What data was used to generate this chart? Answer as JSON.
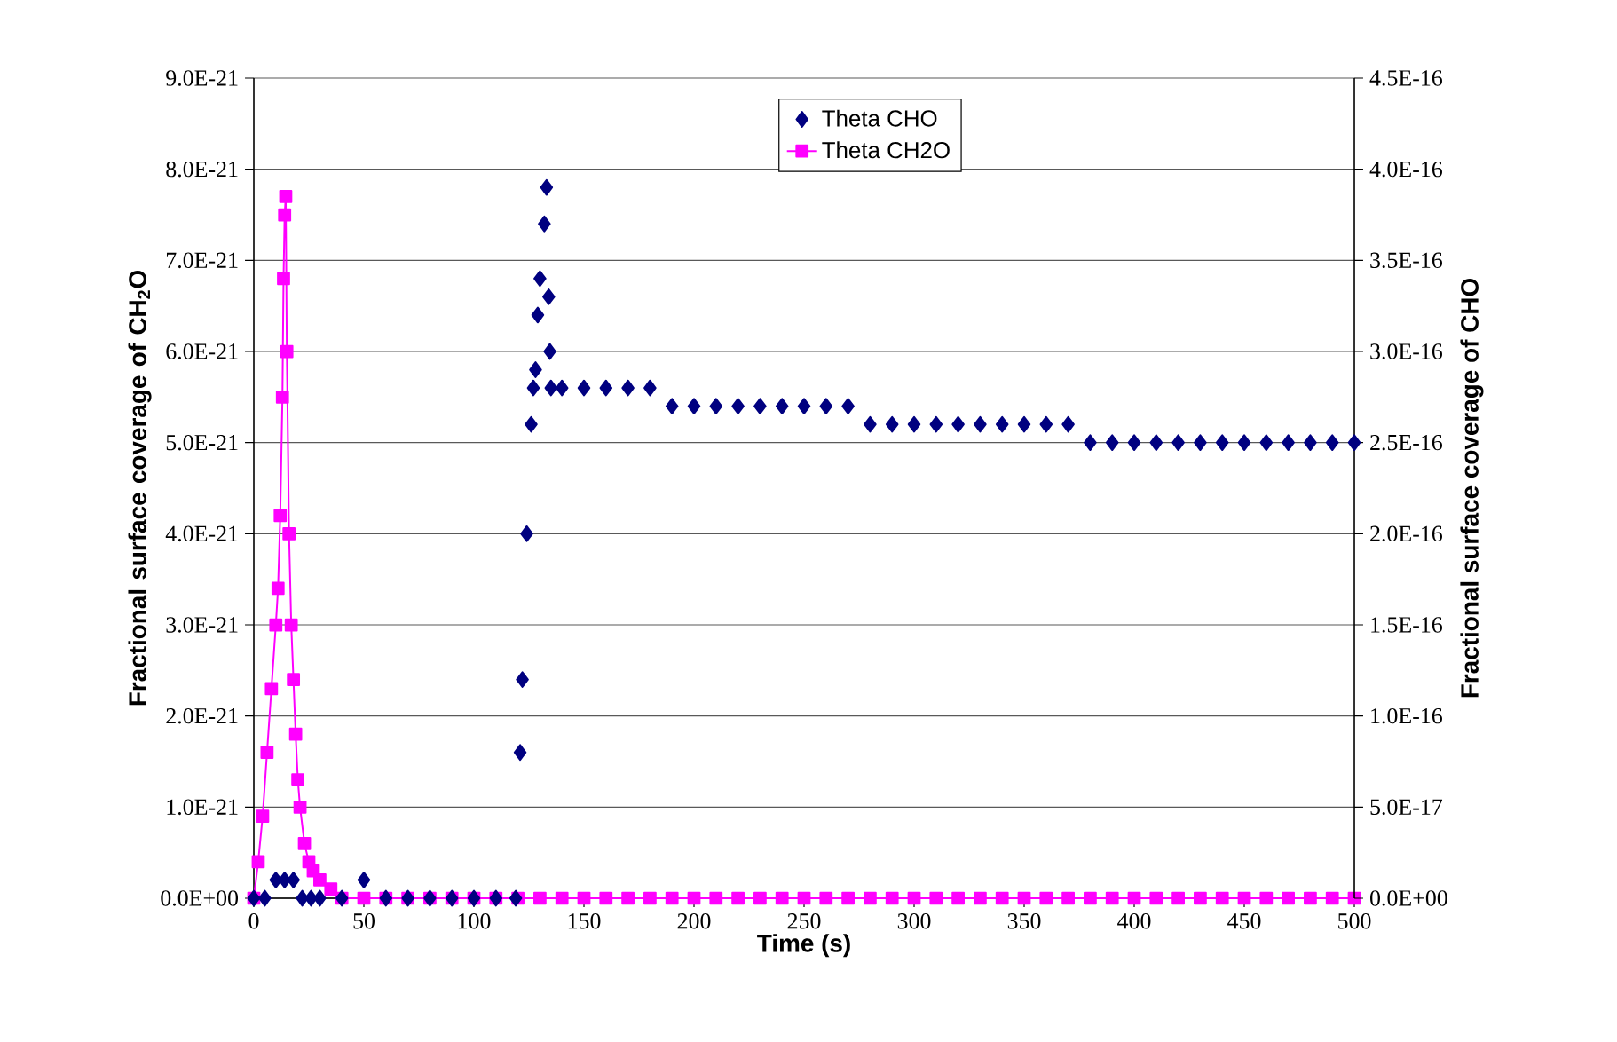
{
  "chart_data": {
    "type": "scatter",
    "xlabel": "Time (s)",
    "ylabel": "Fractional surface coverage of CH$_{2}$O",
    "y2label": "Fractional surface coverage of CHO",
    "xlim": [
      0,
      500
    ],
    "xticks": [
      0,
      50,
      100,
      150,
      200,
      250,
      300,
      350,
      400,
      450,
      500
    ],
    "ylim": [
      0,
      9e-21
    ],
    "yticks": [
      {
        "value": 0,
        "label": "0.0E+00"
      },
      {
        "value": 1e-21,
        "label": "1.0E-21"
      },
      {
        "value": 2e-21,
        "label": "2.0E-21"
      },
      {
        "value": 3e-21,
        "label": "3.0E-21"
      },
      {
        "value": 4e-21,
        "label": "4.0E-21"
      },
      {
        "value": 5e-21,
        "label": "5.0E-21"
      },
      {
        "value": 6e-21,
        "label": "6.0E-21"
      },
      {
        "value": 7e-21,
        "label": "7.0E-21"
      },
      {
        "value": 8e-21,
        "label": "8.0E-21"
      },
      {
        "value": 9e-21,
        "label": "9.0E-21"
      }
    ],
    "y2lim": [
      0,
      4.5e-16
    ],
    "y2ticks": [
      {
        "value": 0,
        "label": "0.0E+00"
      },
      {
        "value": 5e-17,
        "label": "5.0E-17"
      },
      {
        "value": 1e-16,
        "label": "1.0E-16"
      },
      {
        "value": 1.5e-16,
        "label": "1.5E-16"
      },
      {
        "value": 2e-16,
        "label": "2.0E-16"
      },
      {
        "value": 2.5e-16,
        "label": "2.5E-16"
      },
      {
        "value": 3e-16,
        "label": "3.0E-16"
      },
      {
        "value": 3.5e-16,
        "label": "3.5E-16"
      },
      {
        "value": 4e-16,
        "label": "4.0E-16"
      },
      {
        "value": 4.5e-16,
        "label": "4.5E-16"
      }
    ],
    "grid": "y",
    "legend": "top",
    "series": [
      {
        "name": "Theta CHO",
        "axis": "y2",
        "marker": "diamond",
        "color": "#000080",
        "x": [
          0,
          5,
          10,
          14,
          18,
          22,
          26,
          30,
          40,
          50,
          60,
          70,
          80,
          90,
          100,
          110,
          119,
          121,
          122,
          124,
          126,
          127,
          128,
          129,
          130,
          132,
          133,
          134,
          134.5,
          135,
          140,
          150,
          160,
          170,
          180,
          190,
          200,
          210,
          220,
          230,
          240,
          250,
          260,
          270,
          280,
          290,
          300,
          310,
          320,
          330,
          340,
          350,
          360,
          370,
          380,
          390,
          400,
          410,
          420,
          430,
          440,
          450,
          460,
          470,
          480,
          490,
          500
        ],
        "values": [
          0,
          0,
          1e-17,
          1e-17,
          1e-17,
          0,
          0,
          0,
          0,
          1e-17,
          0,
          0,
          0,
          0,
          0,
          0,
          0,
          8e-17,
          1.2e-16,
          2e-16,
          2.6e-16,
          2.8e-16,
          2.9e-16,
          3.2e-16,
          3.4e-16,
          3.7e-16,
          3.9e-16,
          3.3e-16,
          3e-16,
          2.8e-16,
          2.8e-16,
          2.8e-16,
          2.8e-16,
          2.8e-16,
          2.8e-16,
          2.7e-16,
          2.7e-16,
          2.7e-16,
          2.7e-16,
          2.7e-16,
          2.7e-16,
          2.7e-16,
          2.7e-16,
          2.7e-16,
          2.6e-16,
          2.6e-16,
          2.6e-16,
          2.6e-16,
          2.6e-16,
          2.6e-16,
          2.6e-16,
          2.6e-16,
          2.6e-16,
          2.6e-16,
          2.5e-16,
          2.5e-16,
          2.5e-16,
          2.5e-16,
          2.5e-16,
          2.5e-16,
          2.5e-16,
          2.5e-16,
          2.5e-16,
          2.5e-16,
          2.5e-16,
          2.5e-16,
          2.5e-16
        ]
      },
      {
        "name": "Theta CH2O",
        "type": "line",
        "marker": "square",
        "color": "#ff00ff",
        "x": [
          0,
          2,
          4,
          6,
          8,
          10,
          11,
          12,
          13,
          13.5,
          14,
          14.5,
          15,
          16,
          17,
          18,
          19,
          20,
          21,
          23,
          25,
          27,
          30,
          35,
          40,
          50,
          60,
          70,
          80,
          90,
          100,
          110,
          120,
          130,
          140,
          150,
          160,
          170,
          180,
          190,
          200,
          210,
          220,
          230,
          240,
          250,
          260,
          270,
          280,
          290,
          300,
          310,
          320,
          330,
          340,
          350,
          360,
          370,
          380,
          390,
          400,
          410,
          420,
          430,
          440,
          450,
          460,
          470,
          480,
          490,
          500
        ],
        "values": [
          0,
          4e-22,
          9e-22,
          1.6e-21,
          2.3e-21,
          3e-21,
          3.4e-21,
          4.2e-21,
          5.5e-21,
          6.8e-21,
          7.5e-21,
          7.7e-21,
          6e-21,
          4e-21,
          3e-21,
          2.4e-21,
          1.8e-21,
          1.3e-21,
          1e-21,
          6e-22,
          4e-22,
          3e-22,
          2e-22,
          1e-22,
          0,
          0,
          0,
          0,
          0,
          0,
          0,
          0,
          0,
          0,
          0,
          0,
          0,
          0,
          0,
          0,
          0,
          0,
          0,
          0,
          0,
          0,
          0,
          0,
          0,
          0,
          0,
          0,
          0,
          0,
          0,
          0,
          0,
          0,
          0,
          0,
          0,
          0,
          0,
          0,
          0,
          0,
          0,
          0,
          0,
          0,
          0
        ]
      }
    ]
  }
}
